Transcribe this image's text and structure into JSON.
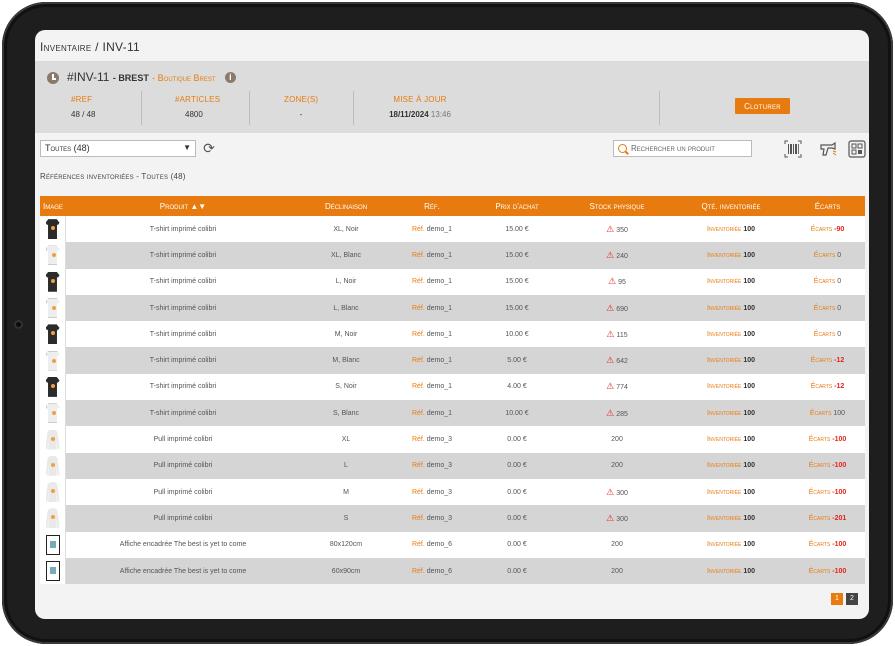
{
  "page": {
    "title_prefix": "Inventaire",
    "title_sep": " / ",
    "title_code": "INV-11"
  },
  "info": {
    "code": "#INV-11",
    "city": "Brest",
    "shop": "Boutique Brest",
    "stats": [
      {
        "label": "#REF",
        "value": "48 / 48"
      },
      {
        "label": "#ARTICLES",
        "value": "4800"
      },
      {
        "label": "ZONE(S)",
        "value": "-"
      },
      {
        "label": "MISE À JOUR",
        "date": "18/11/2024",
        "time": "13:46"
      }
    ],
    "close_label": "Cloturer"
  },
  "toolbar": {
    "filter_value": "Toutes (48)",
    "search_placeholder": "Rechercher un produit"
  },
  "section_label": "Références inventoriées - Toutes (48)",
  "table": {
    "headers": {
      "image": "Image",
      "produit": "Produit",
      "declinaison": "Déclinaison",
      "ref": "Réf.",
      "prix": "Prix d'achat",
      "stock": "Stock physique",
      "qte": "Qté. inventoriée",
      "ecarts": "Écarts"
    },
    "ref_prefix": "Réf.",
    "qte_prefix": "Inventoriée",
    "ecart_prefix": "Écarts",
    "rows": [
      {
        "img": "tshirt-black",
        "produit": "T-shirt imprimé colibri",
        "decl": "XL, Noir",
        "ref": "demo_1",
        "prix": "15.00 €",
        "stock": "350",
        "warn": true,
        "qte": "100",
        "ecart": "-90",
        "neg": true
      },
      {
        "img": "tshirt-white",
        "produit": "T-shirt imprimé colibri",
        "decl": "XL, Blanc",
        "ref": "demo_1",
        "prix": "15.00 €",
        "stock": "240",
        "warn": true,
        "qte": "100",
        "ecart": "0",
        "neg": false
      },
      {
        "img": "tshirt-black",
        "produit": "T-shirt imprimé colibri",
        "decl": "L, Noir",
        "ref": "demo_1",
        "prix": "15.00 €",
        "stock": "95",
        "warn": true,
        "qte": "100",
        "ecart": "0",
        "neg": false
      },
      {
        "img": "tshirt-white",
        "produit": "T-shirt imprimé colibri",
        "decl": "L, Blanc",
        "ref": "demo_1",
        "prix": "15.00 €",
        "stock": "690",
        "warn": true,
        "qte": "100",
        "ecart": "0",
        "neg": false
      },
      {
        "img": "tshirt-black",
        "produit": "T-shirt imprimé colibri",
        "decl": "M, Noir",
        "ref": "demo_1",
        "prix": "10.00 €",
        "stock": "115",
        "warn": true,
        "qte": "100",
        "ecart": "0",
        "neg": false
      },
      {
        "img": "tshirt-white",
        "produit": "T-shirt imprimé colibri",
        "decl": "M, Blanc",
        "ref": "demo_1",
        "prix": "5.00 €",
        "stock": "642",
        "warn": true,
        "qte": "100",
        "ecart": "-12",
        "neg": true
      },
      {
        "img": "tshirt-black",
        "produit": "T-shirt imprimé colibri",
        "decl": "S, Noir",
        "ref": "demo_1",
        "prix": "4.00 €",
        "stock": "774",
        "warn": true,
        "qte": "100",
        "ecart": "-12",
        "neg": true
      },
      {
        "img": "tshirt-white",
        "produit": "T-shirt imprimé colibri",
        "decl": "S, Blanc",
        "ref": "demo_1",
        "prix": "10.00 €",
        "stock": "285",
        "warn": true,
        "qte": "100",
        "ecart": "100",
        "neg": false
      },
      {
        "img": "hoodie",
        "produit": "Pull imprimé colibri",
        "decl": "XL",
        "ref": "demo_3",
        "prix": "0.00 €",
        "stock": "200",
        "warn": false,
        "qte": "100",
        "ecart": "-100",
        "neg": true
      },
      {
        "img": "hoodie",
        "produit": "Pull imprimé colibri",
        "decl": "L",
        "ref": "demo_3",
        "prix": "0.00 €",
        "stock": "200",
        "warn": false,
        "qte": "100",
        "ecart": "-100",
        "neg": true
      },
      {
        "img": "hoodie",
        "produit": "Pull imprimé colibri",
        "decl": "M",
        "ref": "demo_3",
        "prix": "0.00 €",
        "stock": "300",
        "warn": true,
        "qte": "100",
        "ecart": "-100",
        "neg": true
      },
      {
        "img": "hoodie",
        "produit": "Pull imprimé colibri",
        "decl": "S",
        "ref": "demo_3",
        "prix": "0.00 €",
        "stock": "300",
        "warn": true,
        "qte": "100",
        "ecart": "-201",
        "neg": true
      },
      {
        "img": "poster",
        "produit": "Affiche encadrée The best is yet to come",
        "decl": "80x120cm",
        "ref": "demo_6",
        "prix": "0.00 €",
        "stock": "200",
        "warn": false,
        "qte": "100",
        "ecart": "-100",
        "neg": true
      },
      {
        "img": "poster",
        "produit": "Affiche encadrée The best is yet to come",
        "decl": "60x90cm",
        "ref": "demo_6",
        "prix": "0.00 €",
        "stock": "200",
        "warn": false,
        "qte": "100",
        "ecart": "-100",
        "neg": true
      }
    ]
  },
  "pagination": {
    "pages": [
      "1",
      "2"
    ],
    "current": "1"
  },
  "colors": {
    "accent": "#e87b10",
    "negative": "#e4261b"
  }
}
